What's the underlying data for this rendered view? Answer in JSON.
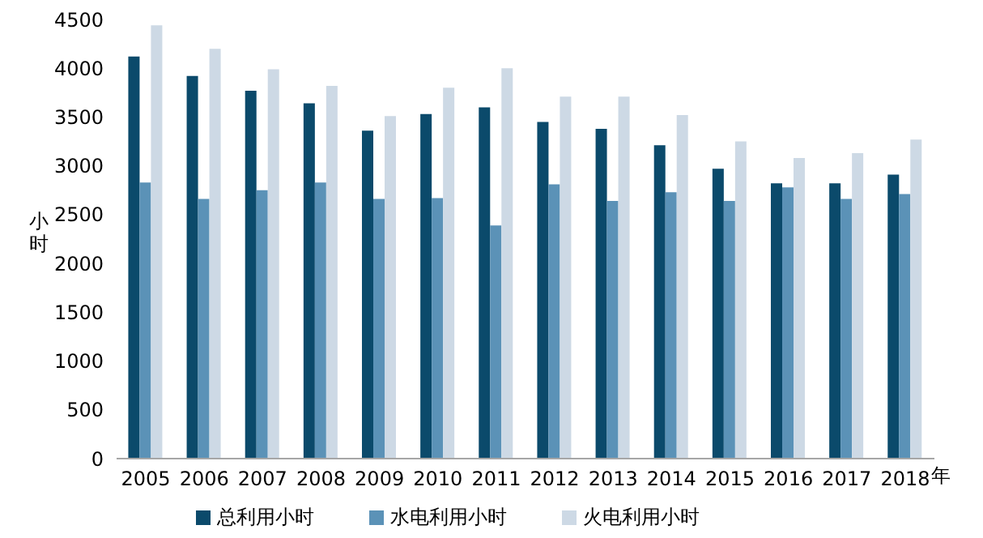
{
  "chart_data": {
    "type": "bar",
    "categories": [
      "2005",
      "2006",
      "2007",
      "2008",
      "2009",
      "2010",
      "2011",
      "2012",
      "2013",
      "2014",
      "2015",
      "2016",
      "2017",
      "2018"
    ],
    "series": [
      {
        "name": "总利用小时",
        "color": "#0b4a6b",
        "values": [
          4120,
          3920,
          3770,
          3640,
          3360,
          3530,
          3600,
          3450,
          3380,
          3210,
          2970,
          2820,
          2820,
          2910
        ]
      },
      {
        "name": "水电利用小时",
        "color": "#5b92b7",
        "values": [
          2830,
          2660,
          2750,
          2830,
          2660,
          2670,
          2390,
          2810,
          2640,
          2730,
          2640,
          2780,
          2660,
          2710
        ]
      },
      {
        "name": "火电利用小时",
        "color": "#cdd9e5",
        "values": [
          4440,
          4200,
          3990,
          3820,
          3510,
          3800,
          4000,
          3710,
          3710,
          3520,
          3250,
          3080,
          3130,
          3270
        ]
      }
    ],
    "xlabel": "年",
    "ylabel": "小时",
    "ylim": [
      0,
      4500
    ],
    "yticks": [
      0,
      500,
      1000,
      1500,
      2000,
      2500,
      3000,
      3500,
      4000,
      4500
    ],
    "grid": false,
    "legend": "bottom"
  }
}
